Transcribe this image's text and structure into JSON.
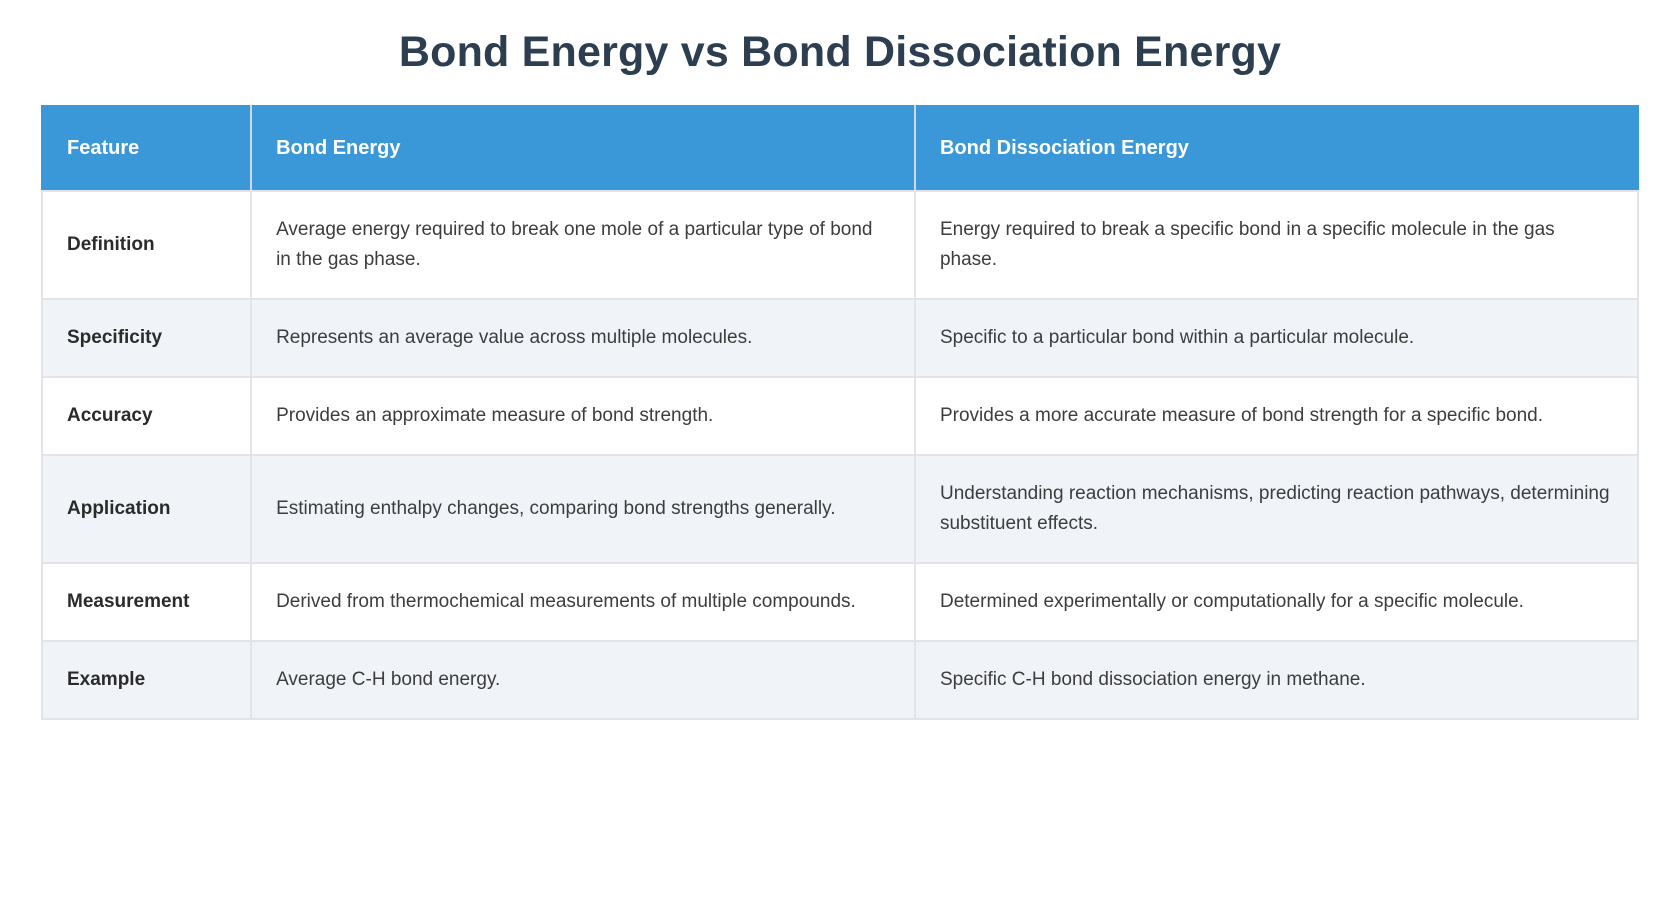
{
  "title": "Bond Energy vs Bond Dissociation Energy",
  "colors": {
    "header_bg": "#3a98d8",
    "header_text": "#ffffff",
    "title_text": "#2c3e50",
    "row_alt_bg": "#f0f4f9",
    "row_bg": "#ffffff",
    "border": "#e2e4e8",
    "body_text": "#3d3d3d"
  },
  "table": {
    "columns": [
      "Feature",
      "Bond Energy",
      "Bond Dissociation Energy"
    ],
    "rows": [
      {
        "feature": "Definition",
        "bond_energy": "Average energy required to break one mole of a particular type of bond in the gas phase.",
        "bond_dissociation_energy": "Energy required to break a specific bond in a specific molecule in the gas phase."
      },
      {
        "feature": "Specificity",
        "bond_energy": "Represents an average value across multiple molecules.",
        "bond_dissociation_energy": "Specific to a particular bond within a particular molecule."
      },
      {
        "feature": "Accuracy",
        "bond_energy": "Provides an approximate measure of bond strength.",
        "bond_dissociation_energy": "Provides a more accurate measure of bond strength for a specific bond."
      },
      {
        "feature": "Application",
        "bond_energy": "Estimating enthalpy changes, comparing bond strengths generally.",
        "bond_dissociation_energy": "Understanding reaction mechanisms, predicting reaction pathways, determining substituent effects."
      },
      {
        "feature": "Measurement",
        "bond_energy": "Derived from thermochemical measurements of multiple compounds.",
        "bond_dissociation_energy": "Determined experimentally or computationally for a specific molecule."
      },
      {
        "feature": "Example",
        "bond_energy": "Average C-H bond energy.",
        "bond_dissociation_energy": "Specific C-H bond dissociation energy in methane."
      }
    ]
  }
}
